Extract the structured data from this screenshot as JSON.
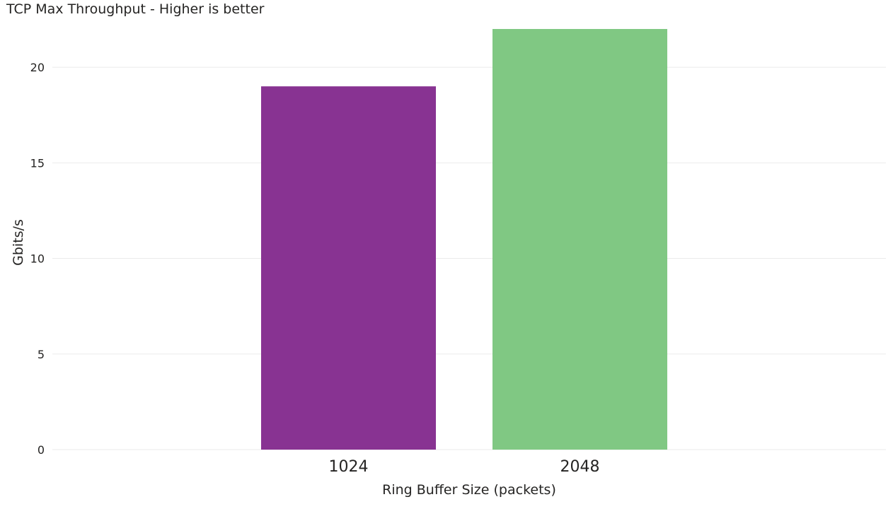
{
  "chart_data": {
    "type": "bar",
    "title": "TCP Max Throughput - Higher is better",
    "xlabel": "Ring Buffer Size (packets)",
    "ylabel": "Gbits/s",
    "categories": [
      "1024",
      "2048"
    ],
    "values": [
      19,
      22
    ],
    "colors": [
      "#883392",
      "#80c883"
    ],
    "ylim": [
      0,
      22
    ],
    "yticks": [
      0,
      5,
      10,
      15,
      20
    ],
    "grid": true,
    "legend": "none"
  }
}
